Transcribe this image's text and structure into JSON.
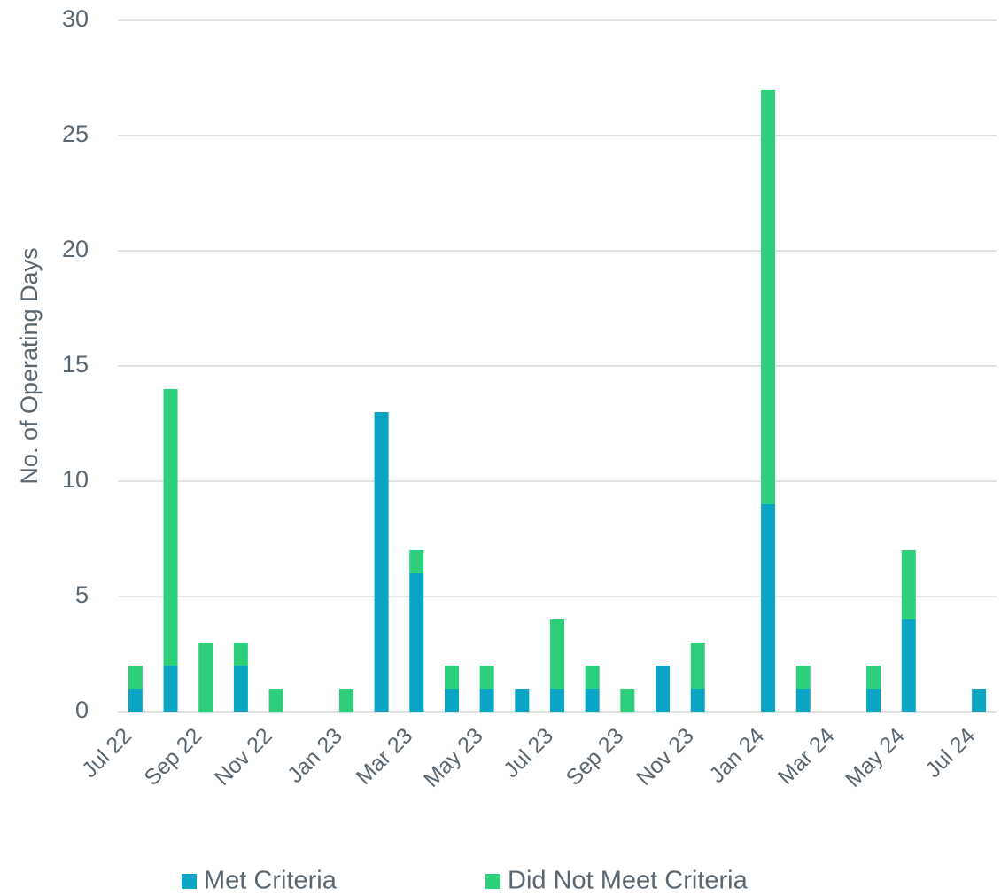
{
  "chart_data": {
    "type": "stacked_bar",
    "y_label": "No. of Operating Days",
    "categories": [
      "Jul 22",
      null,
      "Sep 22",
      null,
      "Nov 22",
      null,
      "Jan 23",
      null,
      "Mar 23",
      null,
      "May 23",
      null,
      "Jul 23",
      null,
      "Sep 23",
      null,
      "Nov 23",
      null,
      "Jan 24",
      null,
      "Mar 24",
      null,
      "May 24",
      null,
      "Jul 24"
    ],
    "series": [
      {
        "name": "Met Criteria",
        "color": "#0aa5c5",
        "values": [
          1,
          2,
          0,
          2,
          0,
          0,
          0,
          13,
          6,
          1,
          1,
          1,
          1,
          1,
          0,
          2,
          1,
          0,
          9,
          1,
          0,
          1,
          4,
          0,
          1
        ]
      },
      {
        "name": "Did Not Meet Criteria",
        "color": "#2ecf7a",
        "values": [
          1,
          12,
          3,
          1,
          1,
          0,
          1,
          0,
          1,
          1,
          1,
          0,
          3,
          1,
          1,
          0,
          2,
          0,
          18,
          1,
          0,
          1,
          3,
          0,
          0
        ]
      }
    ],
    "ylim": [
      0,
      30
    ],
    "yticks": [
      0,
      5,
      10,
      15,
      20,
      25,
      30
    ],
    "grid": true,
    "legend": "bottom"
  }
}
